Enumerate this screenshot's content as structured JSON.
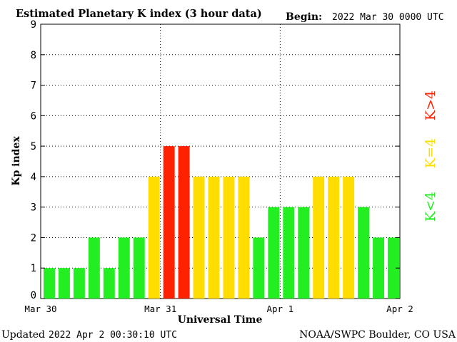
{
  "header": {
    "title": "Estimated Planetary K index (3 hour data)",
    "begin_label": "Begin:",
    "begin_value": "2022 Mar 30 0000 UTC"
  },
  "footer": {
    "updated_label": "Updated",
    "updated_value": "2022 Apr  2 00:30:10 UTC",
    "credit": "NOAA/SWPC Boulder, CO USA"
  },
  "legend": {
    "high": "K>4",
    "equal": "K=4",
    "low": "K<4"
  },
  "colors": {
    "low": "#22ee22",
    "equal": "#ffdd00",
    "high": "#ff2200",
    "grid": "#000000"
  },
  "chart_data": {
    "type": "bar",
    "title": "Estimated Planetary K index (3 hour data)",
    "xlabel": "Universal Time",
    "ylabel": "Kp index",
    "ylim": [
      0,
      9
    ],
    "yticks": [
      "0",
      "1",
      "2",
      "3",
      "4",
      "5",
      "6",
      "7",
      "8",
      "9"
    ],
    "xticks": [
      "Mar 30",
      "Mar 31",
      "Apr 1",
      "Apr 2"
    ],
    "grid": true,
    "values": [
      1,
      1,
      1,
      2,
      1,
      2,
      2,
      4,
      5,
      5,
      4,
      4,
      4,
      4,
      2,
      3,
      3,
      3,
      4,
      4,
      4,
      3,
      2,
      2
    ]
  }
}
